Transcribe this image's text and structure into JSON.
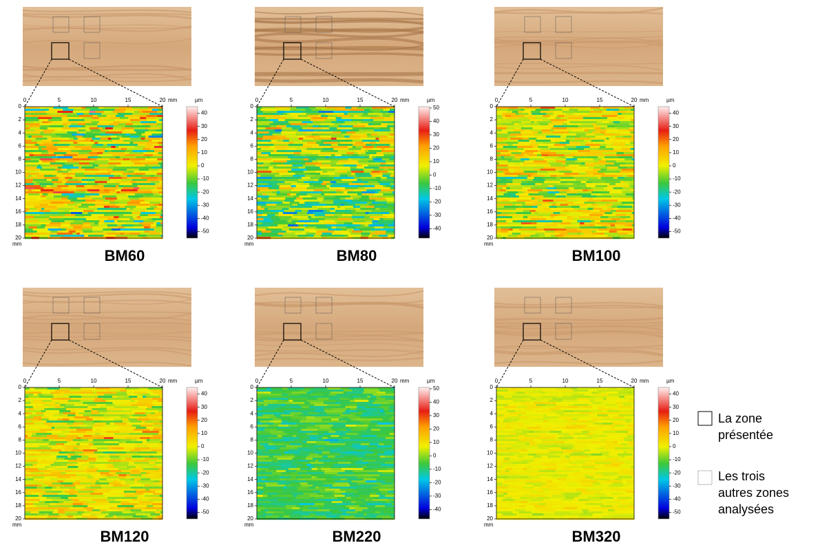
{
  "panels": [
    {
      "label": "BM60",
      "xlim": [
        0,
        20
      ],
      "xticks": [
        0,
        5,
        10,
        15,
        20
      ],
      "x_unit": "mm",
      "ylim": [
        0,
        20
      ],
      "yticks": [
        0,
        2,
        4,
        6,
        8,
        10,
        12,
        14,
        16,
        18,
        20
      ],
      "y_unit": "mm",
      "colorbar_unit": "µm",
      "colorbar_lim": [
        -55,
        45
      ],
      "colorbar_ticks": [
        40,
        30,
        20,
        10,
        0,
        -10,
        -20,
        -30,
        -40,
        -50
      ]
    },
    {
      "label": "BM80",
      "xlim": [
        0,
        20
      ],
      "xticks": [
        0,
        5,
        10,
        15,
        20
      ],
      "x_unit": "mm",
      "ylim": [
        0,
        20
      ],
      "yticks": [
        0,
        2,
        4,
        6,
        8,
        10,
        12,
        14,
        16,
        18,
        20
      ],
      "y_unit": "mm",
      "colorbar_unit": "µm",
      "colorbar_lim": [
        -47,
        51
      ],
      "colorbar_ticks": [
        50,
        40,
        30,
        20,
        10,
        0,
        -10,
        -20,
        -30,
        -40
      ]
    },
    {
      "label": "BM100",
      "xlim": [
        0,
        20
      ],
      "xticks": [
        0,
        5,
        10,
        15,
        20
      ],
      "x_unit": "mm",
      "ylim": [
        0,
        20
      ],
      "yticks": [
        0,
        2,
        4,
        6,
        8,
        10,
        12,
        14,
        16,
        18,
        20
      ],
      "y_unit": "mm",
      "colorbar_unit": "µm",
      "colorbar_lim": [
        -55,
        45
      ],
      "colorbar_ticks": [
        40,
        30,
        20,
        10,
        0,
        -10,
        -20,
        -30,
        -40,
        -50
      ]
    },
    {
      "label": "BM120",
      "xlim": [
        0,
        20
      ],
      "xticks": [
        0,
        5,
        10,
        15,
        20
      ],
      "x_unit": "mm",
      "ylim": [
        0,
        20
      ],
      "yticks": [
        0,
        2,
        4,
        6,
        8,
        10,
        12,
        14,
        16,
        18,
        20
      ],
      "y_unit": "mm",
      "colorbar_unit": "µm",
      "colorbar_lim": [
        -55,
        45
      ],
      "colorbar_ticks": [
        40,
        30,
        20,
        10,
        0,
        -10,
        -20,
        -30,
        -40,
        -50
      ]
    },
    {
      "label": "BM220",
      "xlim": [
        0,
        20
      ],
      "xticks": [
        0,
        5,
        10,
        15,
        20
      ],
      "x_unit": "mm",
      "ylim": [
        0,
        20
      ],
      "yticks": [
        0,
        2,
        4,
        6,
        8,
        10,
        12,
        14,
        16,
        18,
        20
      ],
      "y_unit": "mm",
      "colorbar_unit": "µm",
      "colorbar_lim": [
        -47,
        51
      ],
      "colorbar_ticks": [
        50,
        40,
        30,
        20,
        10,
        0,
        -10,
        -20,
        -30,
        -40
      ]
    },
    {
      "label": "BM320",
      "xlim": [
        0,
        20
      ],
      "xticks": [
        0,
        5,
        10,
        15,
        20
      ],
      "x_unit": "mm",
      "ylim": [
        0,
        20
      ],
      "yticks": [
        0,
        2,
        4,
        6,
        8,
        10,
        12,
        14,
        16,
        18,
        20
      ],
      "y_unit": "mm",
      "colorbar_unit": "µm",
      "colorbar_lim": [
        -55,
        45
      ],
      "colorbar_ticks": [
        40,
        30,
        20,
        10,
        0,
        -10,
        -20,
        -30,
        -40,
        -50
      ]
    }
  ],
  "legend": {
    "presented": [
      "La zone",
      "présentée"
    ],
    "others": [
      "Les trois",
      "autres zones",
      "analysées"
    ]
  }
}
